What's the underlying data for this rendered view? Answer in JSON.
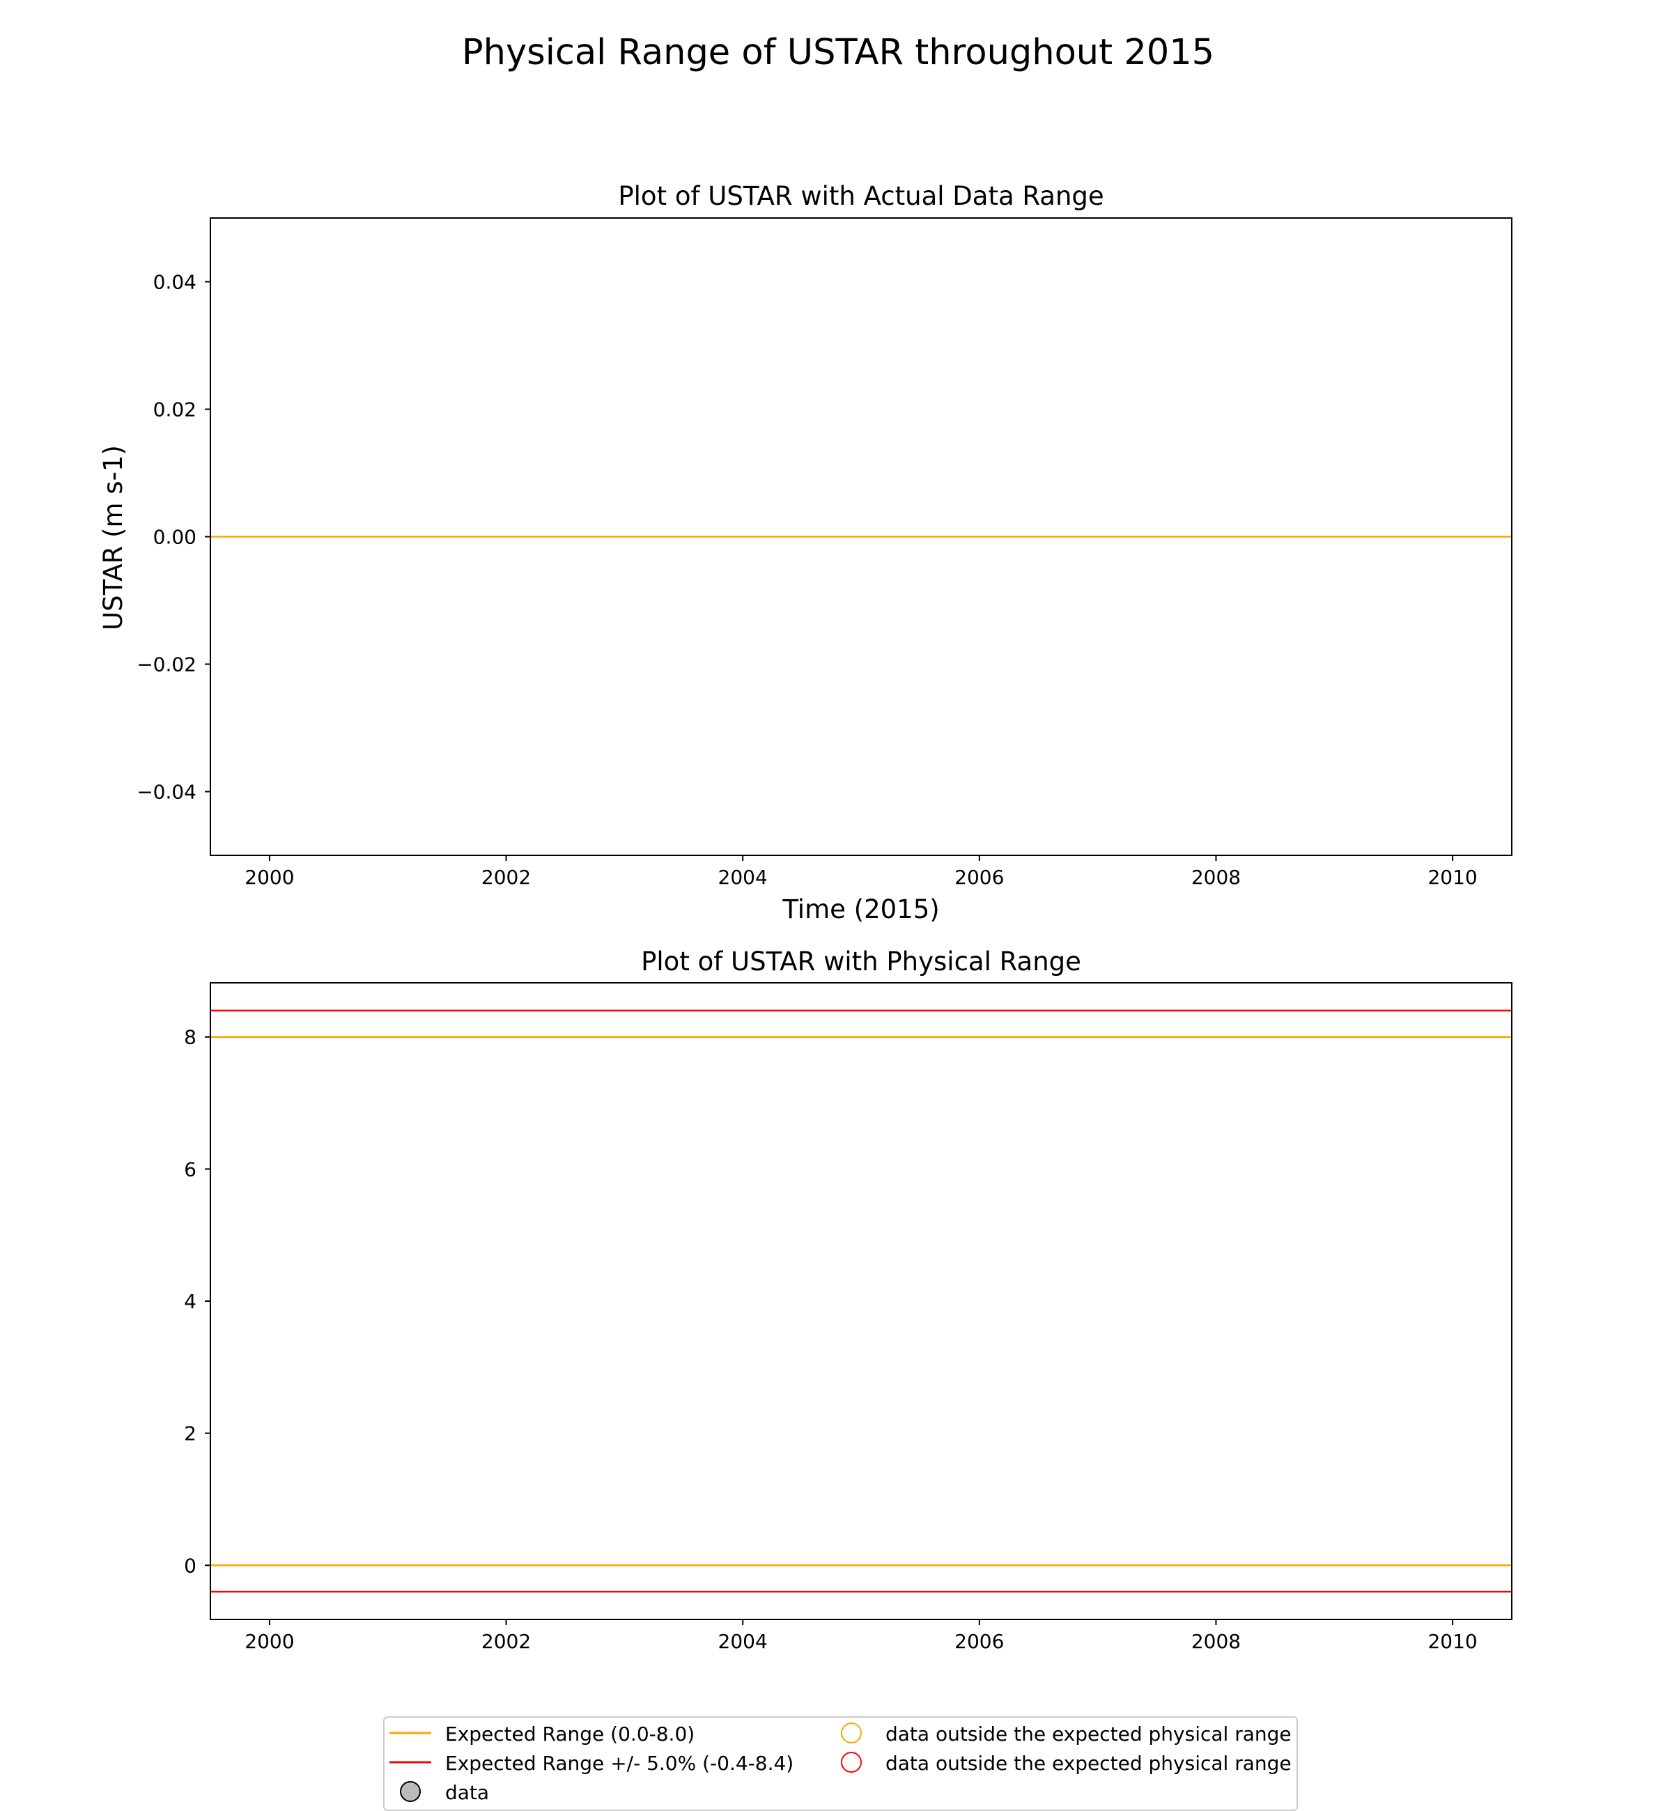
{
  "figure": {
    "suptitle": "Physical Range of USTAR throughout 2015"
  },
  "chart_data": [
    {
      "type": "line",
      "title": "Plot of USTAR with Actual Data Range",
      "xlabel": "Time (2015)",
      "ylabel": "USTAR (m s-1)",
      "xlim": [
        1999.5,
        2010.5
      ],
      "ylim": [
        -0.05,
        0.05
      ],
      "xticks": [
        2000,
        2002,
        2004,
        2006,
        2008,
        2010
      ],
      "xtick_labels": [
        "2000",
        "2002",
        "2004",
        "2006",
        "2008",
        "2010"
      ],
      "yticks": [
        0.04,
        0.02,
        0.0,
        -0.02,
        -0.04
      ],
      "ytick_labels": [
        "0.04",
        "0.02",
        "0.00",
        "−0.02",
        "−0.04"
      ],
      "grid": false,
      "hlines": [
        {
          "y": 0.0,
          "color": "#FFA500"
        }
      ]
    },
    {
      "type": "line",
      "title": "Plot of USTAR with Physical Range",
      "xlabel": "",
      "ylabel": "",
      "xlim": [
        1999.5,
        2010.5
      ],
      "ylim": [
        -0.82,
        8.82
      ],
      "xticks": [
        2000,
        2002,
        2004,
        2006,
        2008,
        2010
      ],
      "xtick_labels": [
        "2000",
        "2002",
        "2004",
        "2006",
        "2008",
        "2010"
      ],
      "yticks": [
        8,
        6,
        4,
        2,
        0
      ],
      "ytick_labels": [
        "8",
        "6",
        "4",
        "2",
        "0"
      ],
      "grid": false,
      "hlines": [
        {
          "y": 8.4,
          "color": "#FF0000"
        },
        {
          "y": 8.0,
          "color": "#FFA500"
        },
        {
          "y": 0.0,
          "color": "#FFA500"
        },
        {
          "y": -0.4,
          "color": "#FF0000"
        }
      ]
    }
  ],
  "legend": {
    "placement": "bottom-center",
    "entries": [
      {
        "label": "Expected Range (0.0-8.0)",
        "kind": "line",
        "color": "#FFA500"
      },
      {
        "label": "Expected Range +/- 5.0% (-0.4-8.4)",
        "kind": "line",
        "color": "#FF0000"
      },
      {
        "label": "data",
        "kind": "marker-filled",
        "color": "#BBBBBB",
        "edge": "#000000"
      },
      {
        "label": "data outside the expected physical range",
        "kind": "marker-open",
        "color": "#FFA500"
      },
      {
        "label": "data outside the expected physical range",
        "kind": "marker-open",
        "color": "#FF0000"
      }
    ]
  }
}
